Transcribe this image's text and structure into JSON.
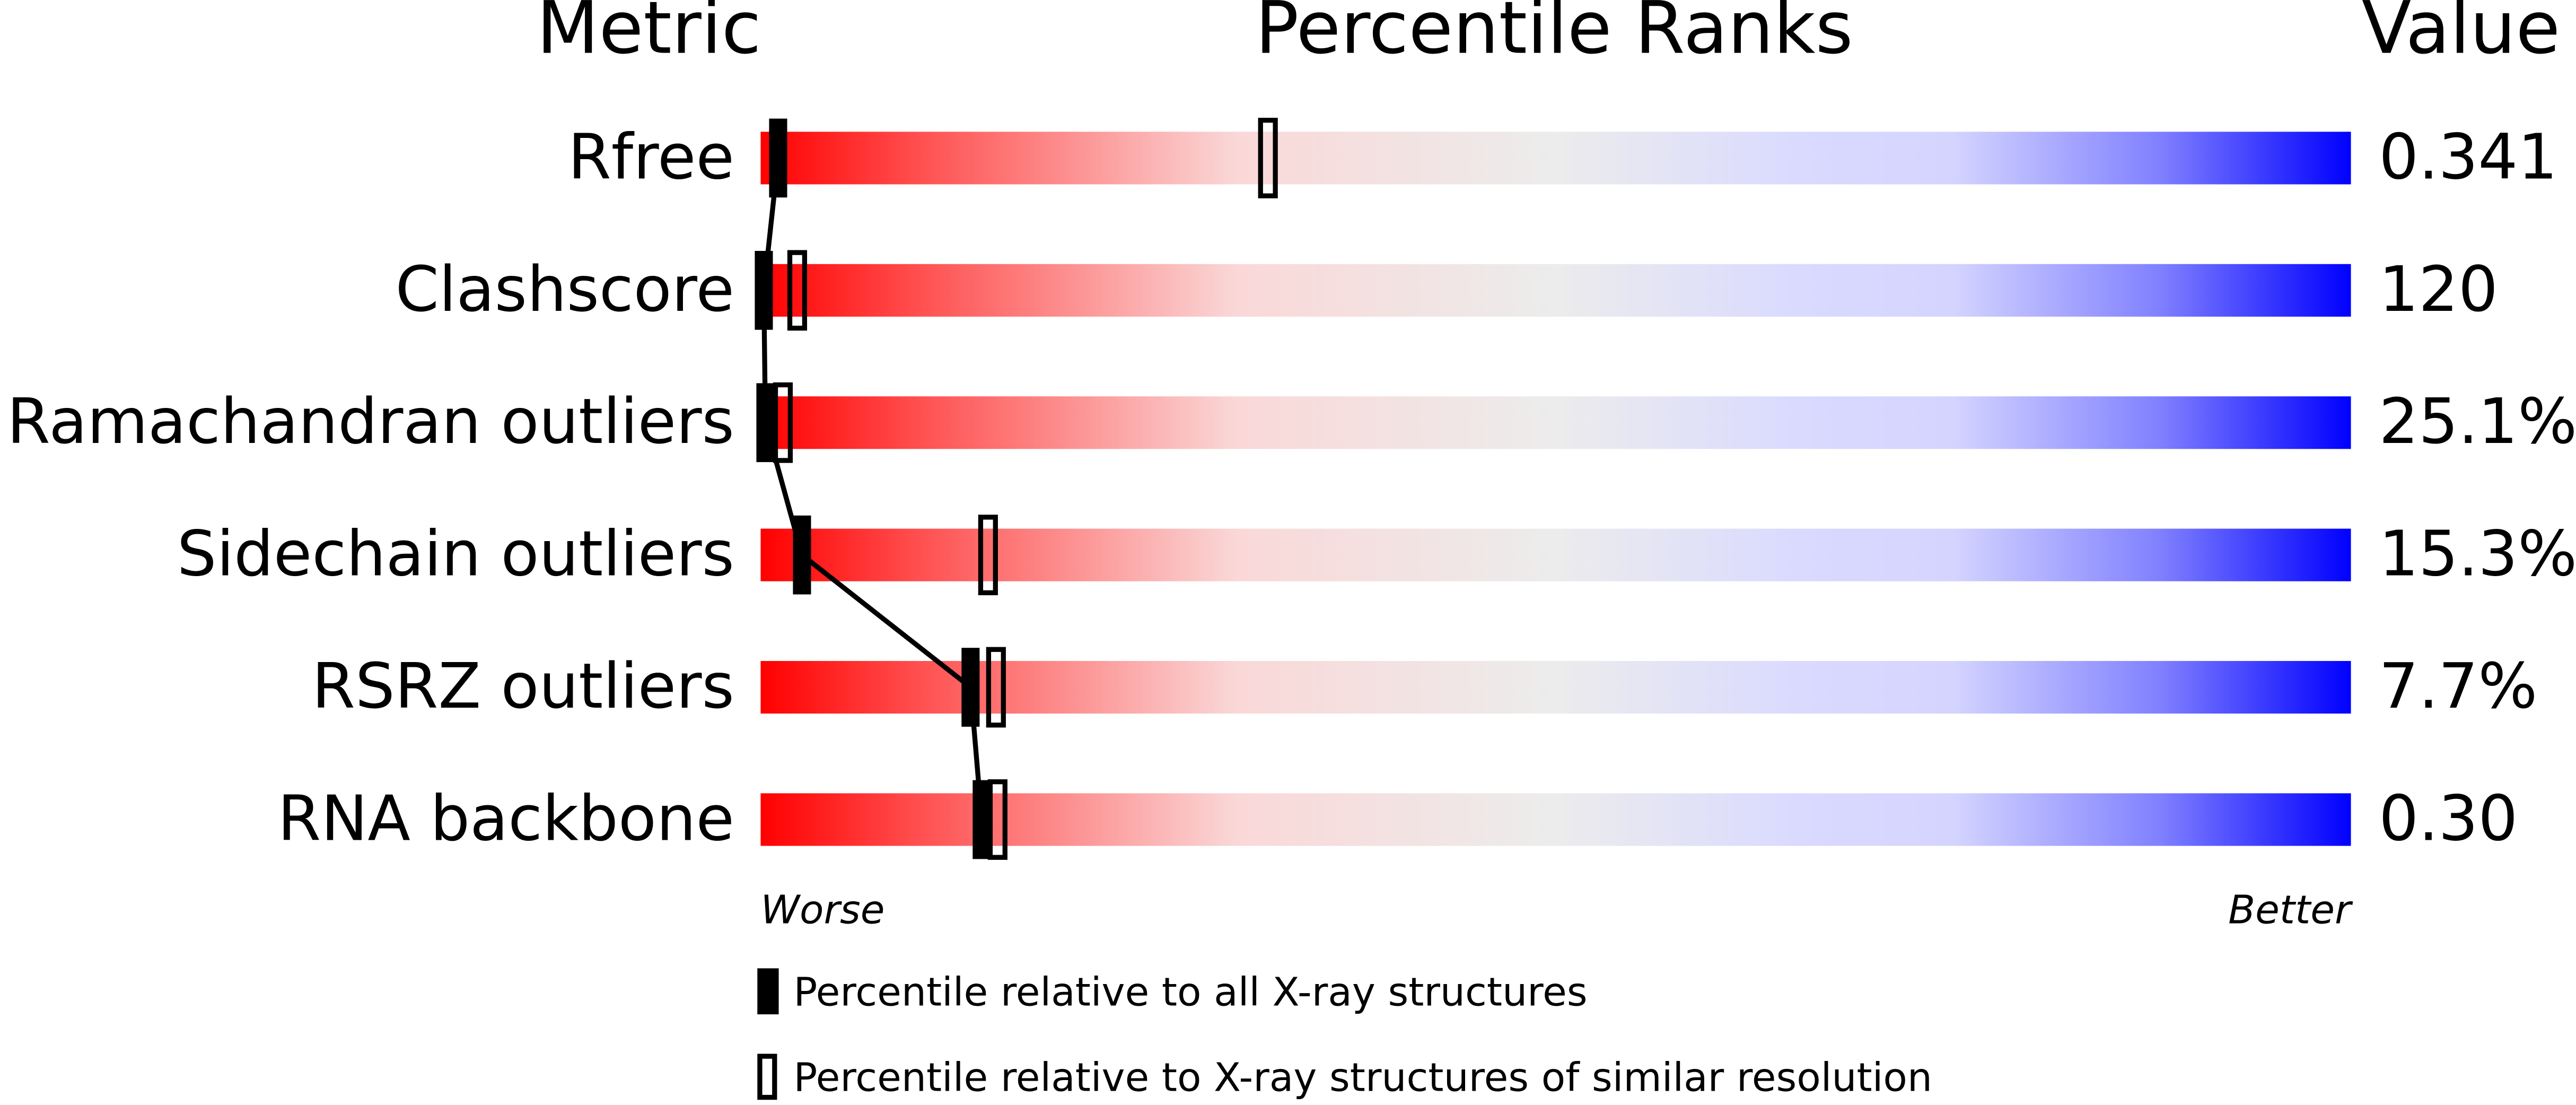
{
  "chart_data": {
    "type": "percentile",
    "headers": [
      "Metric",
      "Percentile Ranks",
      "Value"
    ],
    "categories": [
      "Rfree",
      "Clashscore",
      "Ramachandran outliers",
      "Sidechain outliers",
      "RSRZ outliers",
      "RNA backbone"
    ],
    "metric_values": [
      "0.341",
      "120",
      "25.1%",
      "15.3%",
      "7.7%",
      "0.30"
    ],
    "series": [
      {
        "name": "Percentile relative to all X-ray structures",
        "color": "#000000",
        "style": "filled",
        "values": [
          1.1,
          0.2,
          0.3,
          2.6,
          13.2,
          13.9
        ]
      },
      {
        "name": "Percentile relative to X-ray structures of similar resolution",
        "color": "#000000",
        "style": "open",
        "values": [
          31.9,
          2.3,
          1.4,
          14.3,
          14.8,
          14.9
        ]
      }
    ],
    "xlim": [
      0,
      100
    ],
    "axis_labels": [
      "Worse",
      "Better"
    ]
  }
}
